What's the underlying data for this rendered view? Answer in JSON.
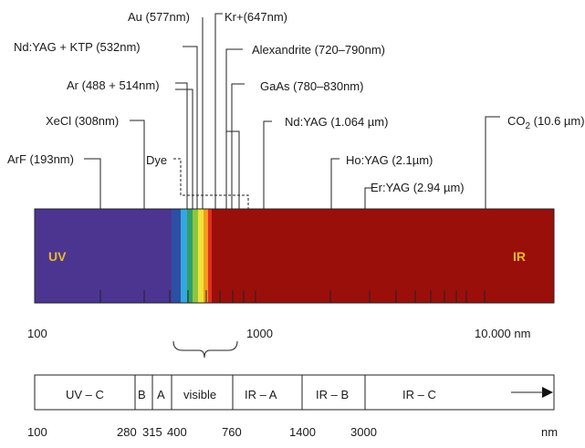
{
  "spectrum": {
    "uv_label": "UV",
    "ir_label": "IR",
    "colors": {
      "uv": "#4b3591",
      "ir": "#9b0f0b",
      "visible": [
        "#2d4fa3",
        "#35a7e0",
        "#2f9f6a",
        "#8cc63f",
        "#f0e33a",
        "#f39c1f",
        "#e0301f"
      ]
    }
  },
  "lasers": [
    {
      "label": "ArF (193nm)",
      "nm": 193
    },
    {
      "label": "XeCl (308nm)",
      "nm": 308
    },
    {
      "label": "Dye",
      "nm": 400
    },
    {
      "label": "Ar (488 + 514nm)",
      "nm": 488
    },
    {
      "label": "Nd:YAG + KTP (532nm)",
      "nm": 532
    },
    {
      "label": "Au (577nm)",
      "nm": 577
    },
    {
      "label": "Kr+(647nm)",
      "nm": 647
    },
    {
      "label": "Alexandrite (720–790nm)",
      "nm": 755
    },
    {
      "label": "GaAs (780–830nm)",
      "nm": 805
    },
    {
      "label": "Nd:YAG (1.064 µm)",
      "nm": 1064
    },
    {
      "label": "Ho:YAG (2.1µm)",
      "nm": 2100
    },
    {
      "label": "Er:YAG (2.94 µm)",
      "nm": 2940
    },
    {
      "label": "CO2 (10.6 µm)",
      "nm": 10600
    }
  ],
  "axis": {
    "ticks": [
      "100",
      "1000",
      "10.000 nm"
    ]
  },
  "visible_brace_label": "",
  "bands": [
    {
      "label": "UV – C"
    },
    {
      "label": "B"
    },
    {
      "label": "A"
    },
    {
      "label": "visible"
    },
    {
      "label": "IR – A"
    },
    {
      "label": "IR – B"
    },
    {
      "label": "IR – C"
    }
  ],
  "band_ticks": [
    "100",
    "280",
    "315",
    "400",
    "760",
    "1400",
    "3000",
    "nm"
  ]
}
